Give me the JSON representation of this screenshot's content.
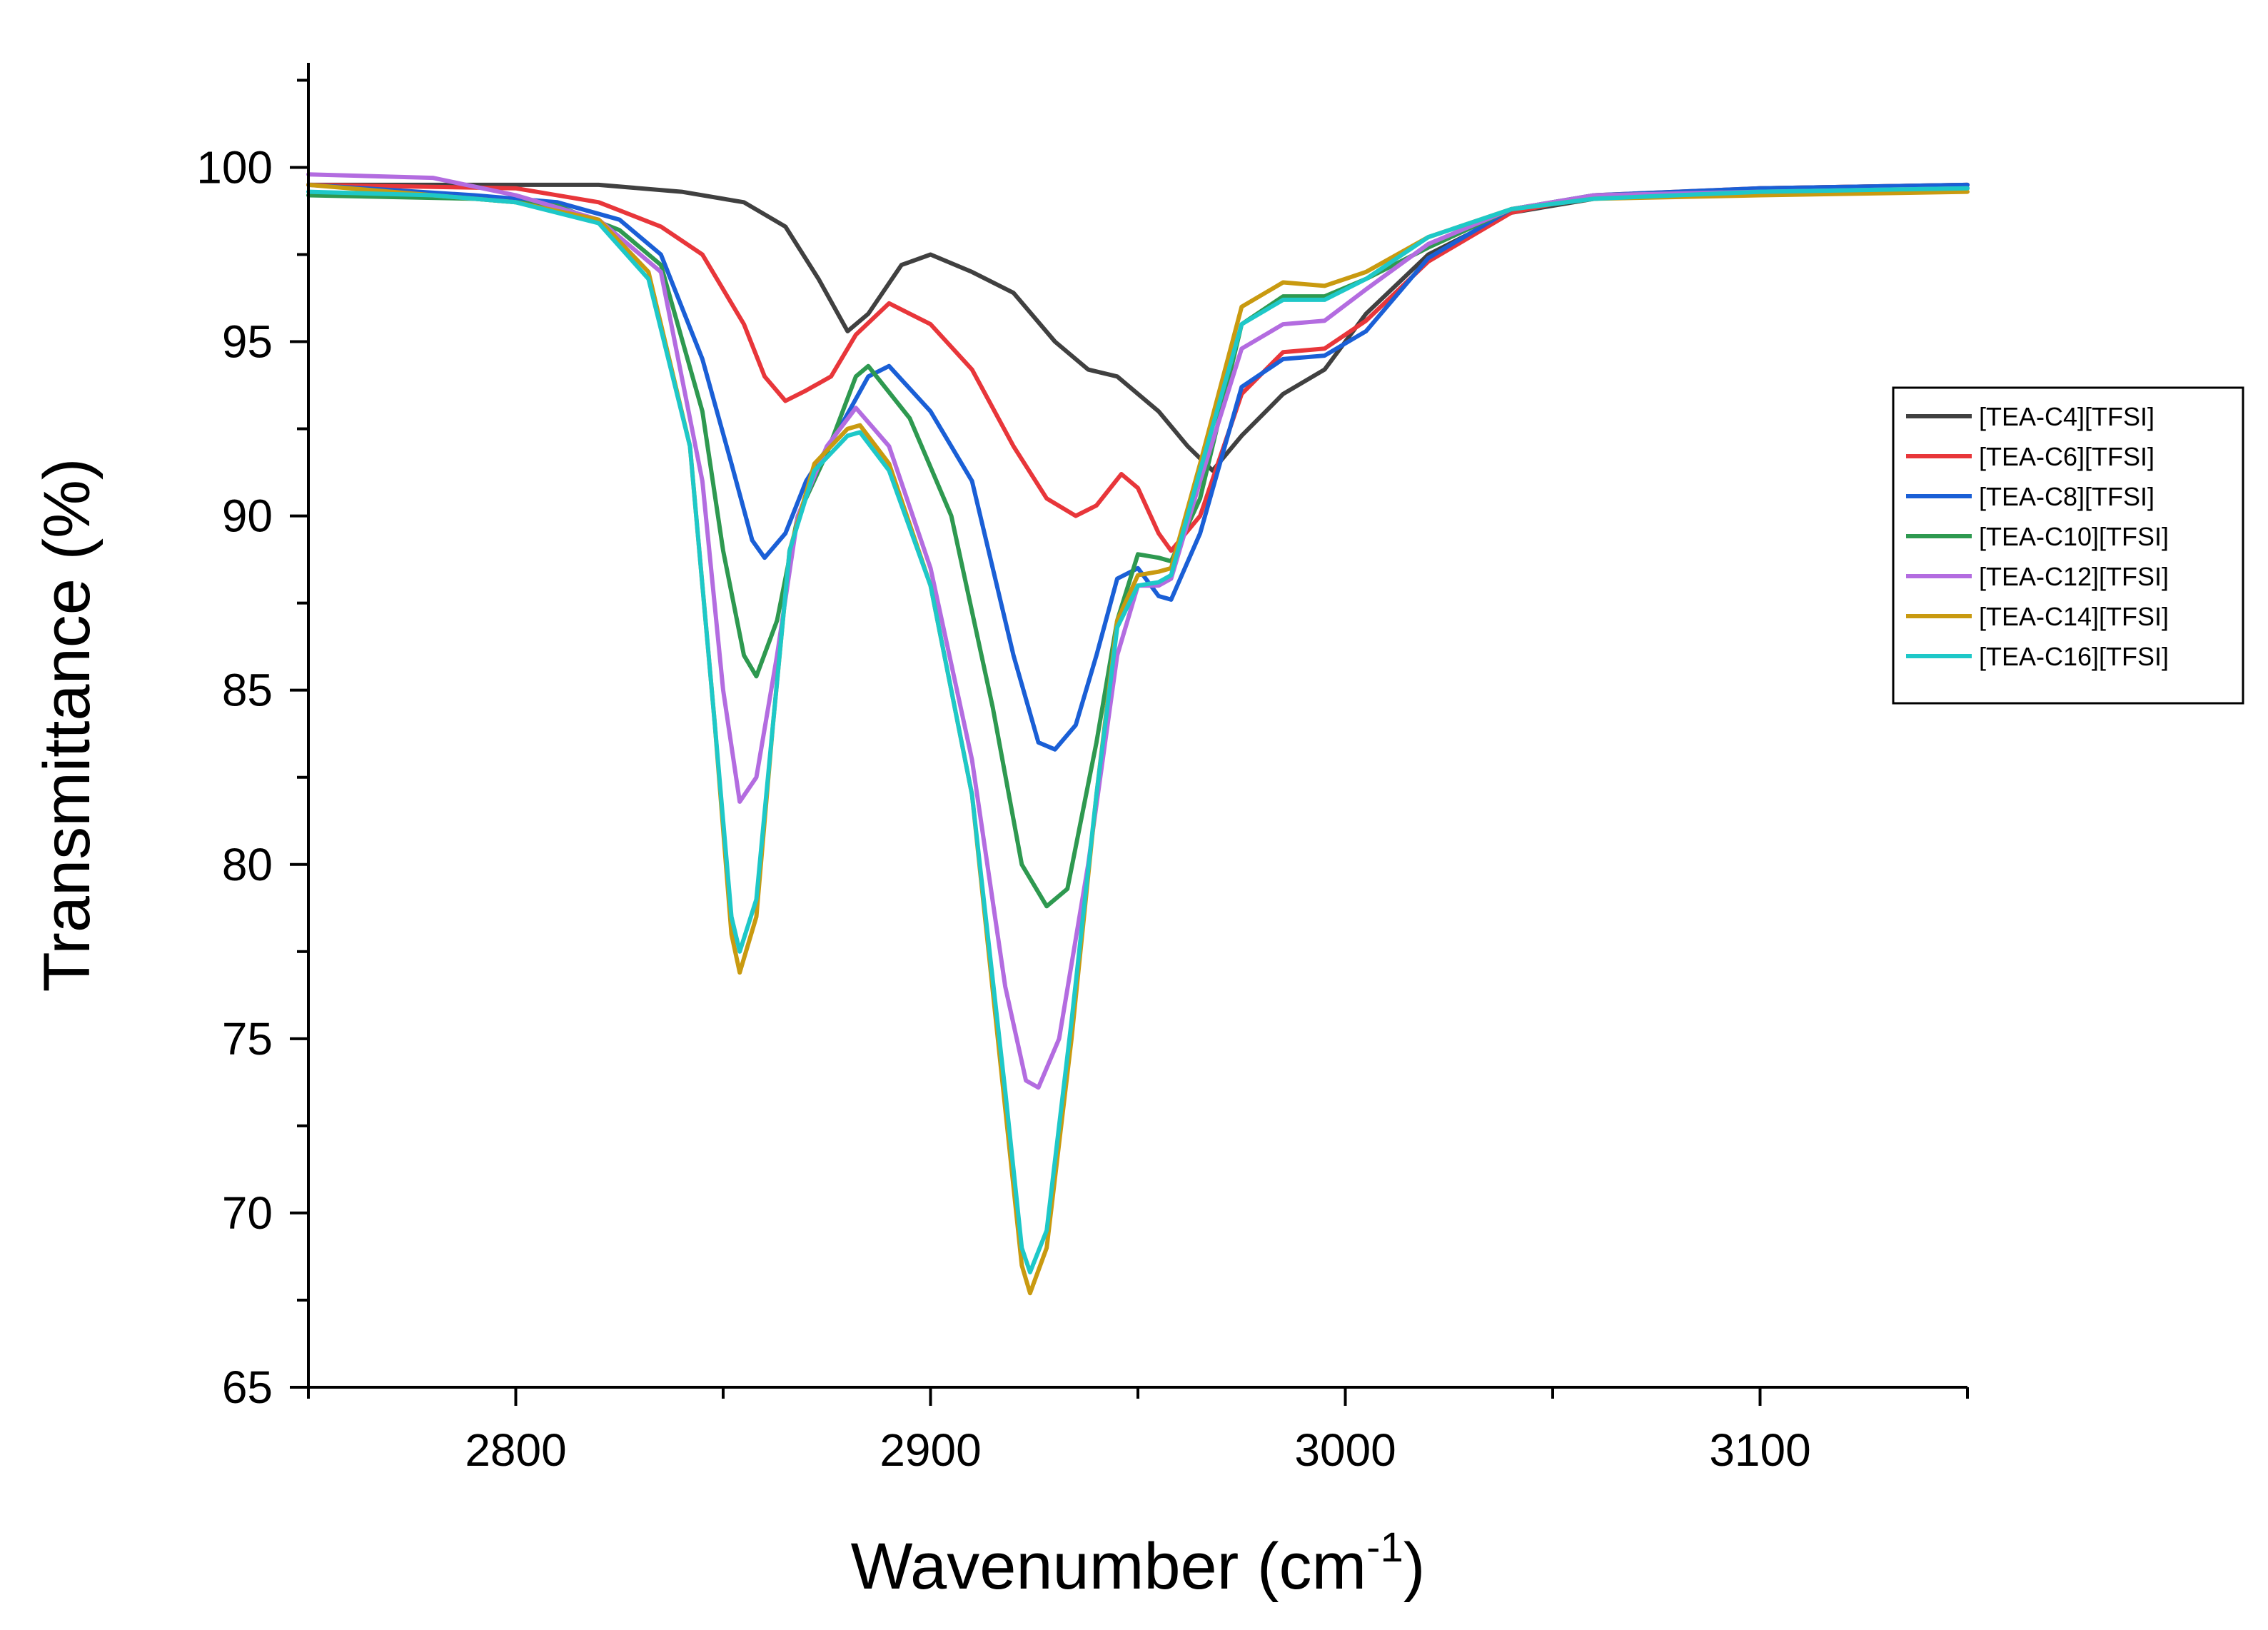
{
  "chart_data": {
    "type": "line",
    "title": "",
    "xlabel": "Wavenumber (cm",
    "xlabel_sup": "-1",
    "xlabel_close": ")",
    "ylabel": "Transmittance (%)",
    "xlim": [
      2750,
      3150
    ],
    "ylim": [
      65,
      103
    ],
    "x_ticks": [
      2800,
      2900,
      3000,
      3100
    ],
    "x_tick_labels": [
      "2800",
      "2900",
      "3000",
      "3100"
    ],
    "y_ticks": [
      65,
      70,
      75,
      80,
      85,
      90,
      95,
      100
    ],
    "y_tick_labels": [
      "65",
      "70",
      "75",
      "80",
      "85",
      "90",
      "95",
      "100"
    ],
    "legend_position": "right",
    "grid": false,
    "series": [
      {
        "name": "[TEA-C4][TFSI]",
        "color": "#404040",
        "points": [
          [
            2750,
            99.5
          ],
          [
            2800,
            99.5
          ],
          [
            2820,
            99.5
          ],
          [
            2840,
            99.3
          ],
          [
            2855,
            99.0
          ],
          [
            2865,
            98.3
          ],
          [
            2873,
            96.8
          ],
          [
            2880,
            95.3
          ],
          [
            2885,
            95.8
          ],
          [
            2893,
            97.2
          ],
          [
            2900,
            97.5
          ],
          [
            2910,
            97.0
          ],
          [
            2920,
            96.4
          ],
          [
            2930,
            95.0
          ],
          [
            2938,
            94.2
          ],
          [
            2945,
            94.0
          ],
          [
            2955,
            93.0
          ],
          [
            2962,
            92.0
          ],
          [
            2968,
            91.3
          ],
          [
            2975,
            92.3
          ],
          [
            2985,
            93.5
          ],
          [
            2995,
            94.2
          ],
          [
            3005,
            95.8
          ],
          [
            3020,
            97.5
          ],
          [
            3040,
            98.7
          ],
          [
            3060,
            99.1
          ],
          [
            3100,
            99.4
          ],
          [
            3150,
            99.5
          ]
        ]
      },
      {
        "name": "[TEA-C6][TFSI]",
        "color": "#e8363a",
        "points": [
          [
            2750,
            99.5
          ],
          [
            2800,
            99.4
          ],
          [
            2820,
            99.0
          ],
          [
            2835,
            98.3
          ],
          [
            2845,
            97.5
          ],
          [
            2855,
            95.5
          ],
          [
            2860,
            94.0
          ],
          [
            2865,
            93.3
          ],
          [
            2870,
            93.6
          ],
          [
            2876,
            94.0
          ],
          [
            2882,
            95.2
          ],
          [
            2890,
            96.1
          ],
          [
            2900,
            95.5
          ],
          [
            2910,
            94.2
          ],
          [
            2920,
            92.0
          ],
          [
            2928,
            90.5
          ],
          [
            2935,
            90.0
          ],
          [
            2940,
            90.3
          ],
          [
            2946,
            91.2
          ],
          [
            2950,
            90.8
          ],
          [
            2955,
            89.5
          ],
          [
            2958,
            89.0
          ],
          [
            2965,
            90.0
          ],
          [
            2975,
            93.5
          ],
          [
            2985,
            94.7
          ],
          [
            2995,
            94.8
          ],
          [
            3005,
            95.6
          ],
          [
            3020,
            97.3
          ],
          [
            3040,
            98.7
          ],
          [
            3060,
            99.2
          ],
          [
            3100,
            99.4
          ],
          [
            3150,
            99.5
          ]
        ]
      },
      {
        "name": "[TEA-C8][TFSI]",
        "color": "#1a5fd6",
        "points": [
          [
            2750,
            99.5
          ],
          [
            2790,
            99.2
          ],
          [
            2810,
            99.0
          ],
          [
            2825,
            98.5
          ],
          [
            2835,
            97.5
          ],
          [
            2845,
            94.5
          ],
          [
            2852,
            91.5
          ],
          [
            2857,
            89.3
          ],
          [
            2860,
            88.8
          ],
          [
            2865,
            89.5
          ],
          [
            2870,
            91.0
          ],
          [
            2878,
            92.5
          ],
          [
            2885,
            94.0
          ],
          [
            2890,
            94.3
          ],
          [
            2900,
            93.0
          ],
          [
            2910,
            91.0
          ],
          [
            2920,
            86.0
          ],
          [
            2926,
            83.5
          ],
          [
            2930,
            83.3
          ],
          [
            2935,
            84.0
          ],
          [
            2940,
            86.0
          ],
          [
            2945,
            88.2
          ],
          [
            2950,
            88.5
          ],
          [
            2955,
            87.7
          ],
          [
            2958,
            87.6
          ],
          [
            2965,
            89.5
          ],
          [
            2975,
            93.7
          ],
          [
            2985,
            94.5
          ],
          [
            2995,
            94.6
          ],
          [
            3005,
            95.3
          ],
          [
            3020,
            97.4
          ],
          [
            3040,
            98.8
          ],
          [
            3060,
            99.2
          ],
          [
            3100,
            99.4
          ],
          [
            3150,
            99.5
          ]
        ]
      },
      {
        "name": "[TEA-C10][TFSI]",
        "color": "#2e9950",
        "points": [
          [
            2750,
            99.2
          ],
          [
            2790,
            99.1
          ],
          [
            2810,
            98.9
          ],
          [
            2825,
            98.2
          ],
          [
            2835,
            97.2
          ],
          [
            2845,
            93.0
          ],
          [
            2850,
            89.0
          ],
          [
            2855,
            86.0
          ],
          [
            2858,
            85.4
          ],
          [
            2863,
            87.0
          ],
          [
            2868,
            90.0
          ],
          [
            2875,
            91.8
          ],
          [
            2882,
            94.0
          ],
          [
            2885,
            94.3
          ],
          [
            2895,
            92.8
          ],
          [
            2905,
            90.0
          ],
          [
            2915,
            84.5
          ],
          [
            2922,
            80.0
          ],
          [
            2928,
            78.8
          ],
          [
            2933,
            79.3
          ],
          [
            2940,
            83.5
          ],
          [
            2945,
            87.0
          ],
          [
            2950,
            88.9
          ],
          [
            2955,
            88.8
          ],
          [
            2958,
            88.7
          ],
          [
            2965,
            90.5
          ],
          [
            2975,
            95.5
          ],
          [
            2985,
            96.3
          ],
          [
            2995,
            96.3
          ],
          [
            3005,
            96.8
          ],
          [
            3020,
            97.7
          ],
          [
            3040,
            98.8
          ],
          [
            3060,
            99.2
          ],
          [
            3100,
            99.3
          ],
          [
            3150,
            99.4
          ]
        ]
      },
      {
        "name": "[TEA-C12][TFSI]",
        "color": "#b36ce0",
        "points": [
          [
            2750,
            99.8
          ],
          [
            2780,
            99.7
          ],
          [
            2800,
            99.2
          ],
          [
            2820,
            98.5
          ],
          [
            2835,
            97.0
          ],
          [
            2845,
            91.0
          ],
          [
            2850,
            85.0
          ],
          [
            2854,
            81.8
          ],
          [
            2858,
            82.5
          ],
          [
            2863,
            86.0
          ],
          [
            2868,
            90.0
          ],
          [
            2875,
            92.0
          ],
          [
            2882,
            93.1
          ],
          [
            2890,
            92.0
          ],
          [
            2900,
            88.5
          ],
          [
            2910,
            83.0
          ],
          [
            2918,
            76.5
          ],
          [
            2923,
            73.8
          ],
          [
            2926,
            73.6
          ],
          [
            2931,
            75.0
          ],
          [
            2938,
            80.0
          ],
          [
            2945,
            86.0
          ],
          [
            2950,
            88.0
          ],
          [
            2955,
            88.0
          ],
          [
            2958,
            88.2
          ],
          [
            2965,
            91.0
          ],
          [
            2975,
            94.8
          ],
          [
            2985,
            95.5
          ],
          [
            2995,
            95.6
          ],
          [
            3005,
            96.5
          ],
          [
            3020,
            97.8
          ],
          [
            3040,
            98.8
          ],
          [
            3060,
            99.2
          ],
          [
            3100,
            99.3
          ],
          [
            3150,
            99.4
          ]
        ]
      },
      {
        "name": "[TEA-C14][TFSI]",
        "color": "#c99a10",
        "points": [
          [
            2750,
            99.5
          ],
          [
            2780,
            99.2
          ],
          [
            2800,
            99.0
          ],
          [
            2820,
            98.5
          ],
          [
            2832,
            97.0
          ],
          [
            2842,
            92.0
          ],
          [
            2848,
            84.0
          ],
          [
            2852,
            78.0
          ],
          [
            2854,
            76.9
          ],
          [
            2858,
            78.5
          ],
          [
            2862,
            84.0
          ],
          [
            2866,
            89.0
          ],
          [
            2872,
            91.5
          ],
          [
            2880,
            92.5
          ],
          [
            2883,
            92.6
          ],
          [
            2890,
            91.5
          ],
          [
            2900,
            88.0
          ],
          [
            2910,
            82.0
          ],
          [
            2918,
            73.0
          ],
          [
            2922,
            68.5
          ],
          [
            2924,
            67.7
          ],
          [
            2928,
            69.0
          ],
          [
            2934,
            75.0
          ],
          [
            2940,
            82.0
          ],
          [
            2945,
            87.0
          ],
          [
            2950,
            88.3
          ],
          [
            2955,
            88.4
          ],
          [
            2958,
            88.5
          ],
          [
            2965,
            91.5
          ],
          [
            2975,
            96.0
          ],
          [
            2985,
            96.7
          ],
          [
            2995,
            96.6
          ],
          [
            3005,
            97.0
          ],
          [
            3020,
            98.0
          ],
          [
            3040,
            98.8
          ],
          [
            3060,
            99.1
          ],
          [
            3100,
            99.2
          ],
          [
            3150,
            99.3
          ]
        ]
      },
      {
        "name": "[TEA-C16][TFSI]",
        "color": "#1ec8c8",
        "points": [
          [
            2750,
            99.3
          ],
          [
            2780,
            99.2
          ],
          [
            2800,
            99.0
          ],
          [
            2820,
            98.4
          ],
          [
            2832,
            96.8
          ],
          [
            2842,
            92.0
          ],
          [
            2848,
            84.0
          ],
          [
            2852,
            78.5
          ],
          [
            2854,
            77.5
          ],
          [
            2858,
            79.0
          ],
          [
            2862,
            84.0
          ],
          [
            2866,
            89.0
          ],
          [
            2872,
            91.3
          ],
          [
            2880,
            92.3
          ],
          [
            2883,
            92.4
          ],
          [
            2890,
            91.3
          ],
          [
            2900,
            88.0
          ],
          [
            2910,
            82.0
          ],
          [
            2918,
            73.5
          ],
          [
            2922,
            69.0
          ],
          [
            2924,
            68.3
          ],
          [
            2928,
            69.5
          ],
          [
            2934,
            75.5
          ],
          [
            2940,
            82.0
          ],
          [
            2945,
            86.8
          ],
          [
            2950,
            88.0
          ],
          [
            2955,
            88.1
          ],
          [
            2958,
            88.3
          ],
          [
            2965,
            91.3
          ],
          [
            2975,
            95.5
          ],
          [
            2985,
            96.2
          ],
          [
            2995,
            96.2
          ],
          [
            3005,
            96.8
          ],
          [
            3020,
            98.0
          ],
          [
            3040,
            98.8
          ],
          [
            3060,
            99.1
          ],
          [
            3100,
            99.3
          ],
          [
            3150,
            99.4
          ]
        ]
      }
    ]
  }
}
